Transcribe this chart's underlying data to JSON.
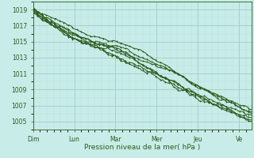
{
  "title": "",
  "xlabel": "Pression niveau de la mer( hPa )",
  "ylabel": "",
  "background_color": "#c8ece8",
  "plot_bg_color": "#c8ece8",
  "line_color": "#2d5a1b",
  "grid_major_color": "#9ecec8",
  "grid_minor_color": "#b8deda",
  "tick_color": "#2d5a1b",
  "spine_color": "#2d5a1b",
  "ylim": [
    1004.0,
    1020.0
  ],
  "yticks": [
    1005,
    1007,
    1009,
    1011,
    1013,
    1015,
    1017,
    1019
  ],
  "days": [
    "Dim",
    "Lun",
    "Mar",
    "Mer",
    "Jeu",
    "Ve"
  ],
  "day_positions": [
    0,
    1,
    2,
    3,
    4,
    5
  ],
  "xlim": [
    0,
    5.3
  ],
  "n_points": 200,
  "line_width": 0.7,
  "marker_size": 2.0
}
